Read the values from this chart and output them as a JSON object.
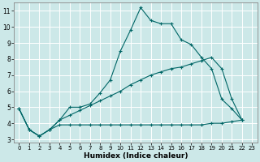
{
  "xlabel": "Humidex (Indice chaleur)",
  "background_color": "#cce8e8",
  "grid_color": "#ffffff",
  "line_color": "#006666",
  "xlim": [
    -0.5,
    23.5
  ],
  "ylim": [
    2.8,
    11.5
  ],
  "xticks": [
    0,
    1,
    2,
    3,
    4,
    5,
    6,
    7,
    8,
    9,
    10,
    11,
    12,
    13,
    14,
    15,
    16,
    17,
    18,
    19,
    20,
    21,
    22,
    23
  ],
  "yticks": [
    3,
    4,
    5,
    6,
    7,
    8,
    9,
    10,
    11
  ],
  "line1_x": [
    0,
    1,
    2,
    3,
    4,
    5,
    6,
    7,
    8,
    9,
    10,
    11,
    12,
    13,
    14,
    15,
    16,
    17,
    18,
    19,
    20,
    21,
    22
  ],
  "line1_y": [
    4.9,
    3.6,
    3.2,
    3.6,
    4.2,
    5.0,
    5.0,
    5.2,
    5.9,
    6.7,
    8.5,
    9.8,
    11.2,
    10.4,
    10.2,
    10.2,
    9.2,
    8.9,
    8.1,
    7.4,
    5.5,
    4.9,
    4.2
  ],
  "line2_x": [
    0,
    1,
    2,
    3,
    4,
    5,
    6,
    7,
    8,
    9,
    10,
    11,
    12,
    13,
    14,
    15,
    16,
    17,
    18,
    19,
    20,
    21,
    22
  ],
  "line2_y": [
    4.9,
    3.6,
    3.2,
    3.6,
    4.2,
    4.5,
    4.8,
    5.1,
    5.4,
    5.7,
    6.0,
    6.4,
    6.7,
    7.0,
    7.2,
    7.4,
    7.5,
    7.7,
    7.9,
    8.1,
    7.4,
    5.5,
    4.2
  ],
  "line3_x": [
    0,
    1,
    2,
    3,
    4,
    5,
    6,
    7,
    8,
    9,
    10,
    11,
    12,
    13,
    14,
    15,
    16,
    17,
    18,
    19,
    20,
    21,
    22
  ],
  "line3_y": [
    4.9,
    3.6,
    3.2,
    3.6,
    3.9,
    3.9,
    3.9,
    3.9,
    3.9,
    3.9,
    3.9,
    3.9,
    3.9,
    3.9,
    3.9,
    3.9,
    3.9,
    3.9,
    3.9,
    4.0,
    4.0,
    4.1,
    4.2
  ]
}
